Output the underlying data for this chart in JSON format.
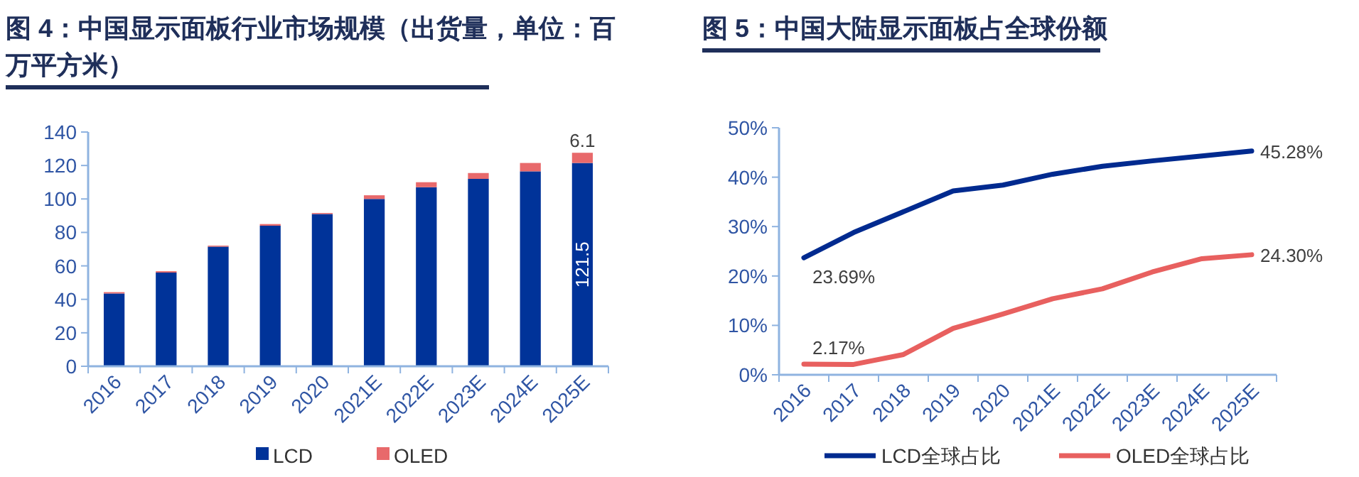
{
  "chart_data": [
    {
      "type": "bar",
      "title": "图 4：中国显示面板行业市场规模（出货量，单位：百万平方米）",
      "categories": [
        "2016",
        "2017",
        "2018",
        "2019",
        "2020",
        "2021E",
        "2022E",
        "2023E",
        "2024E",
        "2025E"
      ],
      "stacked": true,
      "series": [
        {
          "name": "LCD",
          "color": "#003399",
          "values": [
            43.5,
            56,
            71.5,
            84,
            91,
            100,
            107,
            112,
            116.5,
            121.5
          ],
          "value_labels": [
            null,
            null,
            null,
            null,
            null,
            null,
            null,
            null,
            null,
            "121.5"
          ]
        },
        {
          "name": "OLED",
          "color": "#e8696b",
          "values": [
            0.8,
            0.8,
            0.6,
            1,
            0.6,
            2.2,
            3,
            3.5,
            5,
            6.1
          ],
          "value_labels": [
            null,
            null,
            null,
            null,
            null,
            null,
            null,
            null,
            null,
            "6.1"
          ]
        }
      ],
      "ylim": [
        0,
        140
      ],
      "yticks": [
        0,
        20,
        40,
        60,
        80,
        100,
        120,
        140
      ],
      "grid": false,
      "legend": "bottom"
    },
    {
      "type": "line",
      "title": "图 5：中国大陆显示面板占全球份额",
      "categories": [
        "2016",
        "2017",
        "2018",
        "2019",
        "2020",
        "2021E",
        "2022E",
        "2023E",
        "2024E",
        "2025E"
      ],
      "series": [
        {
          "name": "LCD全球占比",
          "color": "#002a8f",
          "values": [
            23.69,
            28.8,
            33,
            37.2,
            38.4,
            40.6,
            42.2,
            43.3,
            44.3,
            45.28
          ],
          "value_labels": [
            "23.69%",
            null,
            null,
            null,
            null,
            null,
            null,
            null,
            null,
            "45.28%"
          ]
        },
        {
          "name": "OLED全球占比",
          "color": "#e8605f",
          "values": [
            2.17,
            2.1,
            4.1,
            9.4,
            12.3,
            15.4,
            17.4,
            20.8,
            23.5,
            24.3
          ],
          "value_labels": [
            "2.17%",
            null,
            null,
            null,
            null,
            null,
            null,
            null,
            null,
            "24.30%"
          ]
        }
      ],
      "ylim": [
        0,
        50
      ],
      "yticks": [
        {
          "value": 0,
          "label": "0%"
        },
        {
          "value": 10,
          "label": "10%"
        },
        {
          "value": 20,
          "label": "20%"
        },
        {
          "value": 30,
          "label": "30%"
        },
        {
          "value": 40,
          "label": "40%"
        },
        {
          "value": 50,
          "label": "50%"
        }
      ],
      "grid": false,
      "legend": "bottom",
      "marker": "none",
      "line_style": "solid"
    }
  ]
}
